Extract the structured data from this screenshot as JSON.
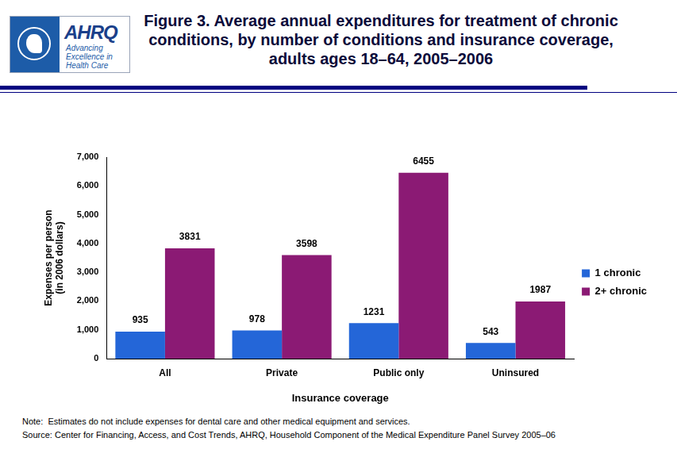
{
  "logo": {
    "name": "AHRQ",
    "tagline": "Advancing Excellence in Health Care"
  },
  "chart_data": {
    "type": "bar",
    "title": "Figure 3. Average annual expenditures for treatment of chronic conditions, by number of conditions and insurance coverage, adults ages 18–64, 2005–2006",
    "y_label": [
      "Expenses per person",
      "(in 2006 dollars)"
    ],
    "x_label": "Insurance coverage",
    "categories": [
      "All",
      "Private",
      "Public only",
      "Uninsured"
    ],
    "series": [
      {
        "name": "1 chronic",
        "color": "#2466d8",
        "values": [
          935,
          978,
          1231,
          543
        ]
      },
      {
        "name": "2+ chronic",
        "color": "#8b1a74",
        "values": [
          3831,
          3598,
          6455,
          1987
        ]
      }
    ],
    "ylim": [
      0,
      7000
    ],
    "yticks": [
      0,
      {
        "value": 1000,
        "label": "1,000"
      },
      {
        "value": 2000,
        "label": "2,000"
      },
      {
        "value": 3000,
        "label": "3,000"
      },
      {
        "value": 4000,
        "label": "4,000"
      },
      {
        "value": 5000,
        "label": "5,000"
      },
      {
        "value": 6000,
        "label": "6,000"
      },
      {
        "value": 7000,
        "label": "7,000"
      }
    ],
    "grid": false,
    "legend": "right",
    "data_labels": true,
    "notes": [
      "Note:  Estimates do not include expenses for dental care and other medical equipment and services.",
      "Source: Center for Financing, Access, and Cost Trends, AHRQ, Household Component of the Medical Expenditure Panel Survey 2005–06"
    ]
  }
}
